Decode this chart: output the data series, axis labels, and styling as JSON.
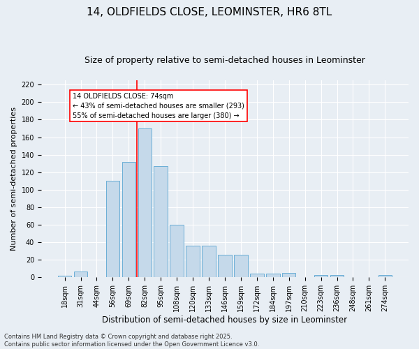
{
  "title": "14, OLDFIELDS CLOSE, LEOMINSTER, HR6 8TL",
  "subtitle": "Size of property relative to semi-detached houses in Leominster",
  "xlabel": "Distribution of semi-detached houses by size in Leominster",
  "ylabel": "Number of semi-detached properties",
  "categories": [
    "18sqm",
    "31sqm",
    "44sqm",
    "56sqm",
    "69sqm",
    "82sqm",
    "95sqm",
    "108sqm",
    "120sqm",
    "133sqm",
    "146sqm",
    "159sqm",
    "172sqm",
    "184sqm",
    "197sqm",
    "210sqm",
    "223sqm",
    "236sqm",
    "248sqm",
    "261sqm",
    "274sqm"
  ],
  "values": [
    2,
    7,
    0,
    110,
    132,
    170,
    127,
    60,
    36,
    36,
    26,
    26,
    4,
    4,
    5,
    0,
    3,
    3,
    0,
    0,
    3
  ],
  "bar_color": "#c5d9ea",
  "bar_edge_color": "#6aaed6",
  "vline_x": 4.5,
  "vline_color": "red",
  "annotation_title": "14 OLDFIELDS CLOSE: 74sqm",
  "annotation_line1": "← 43% of semi-detached houses are smaller (293)",
  "annotation_line2": "55% of semi-detached houses are larger (380) →",
  "annotation_box_color": "white",
  "annotation_box_edge": "red",
  "ylim": [
    0,
    225
  ],
  "yticks": [
    0,
    20,
    40,
    60,
    80,
    100,
    120,
    140,
    160,
    180,
    200,
    220
  ],
  "background_color": "#e8eef4",
  "footnote": "Contains HM Land Registry data © Crown copyright and database right 2025.\nContains public sector information licensed under the Open Government Licence v3.0.",
  "title_fontsize": 11,
  "subtitle_fontsize": 9,
  "xlabel_fontsize": 8.5,
  "ylabel_fontsize": 8,
  "tick_fontsize": 7,
  "annotation_fontsize": 7,
  "footnote_fontsize": 6
}
